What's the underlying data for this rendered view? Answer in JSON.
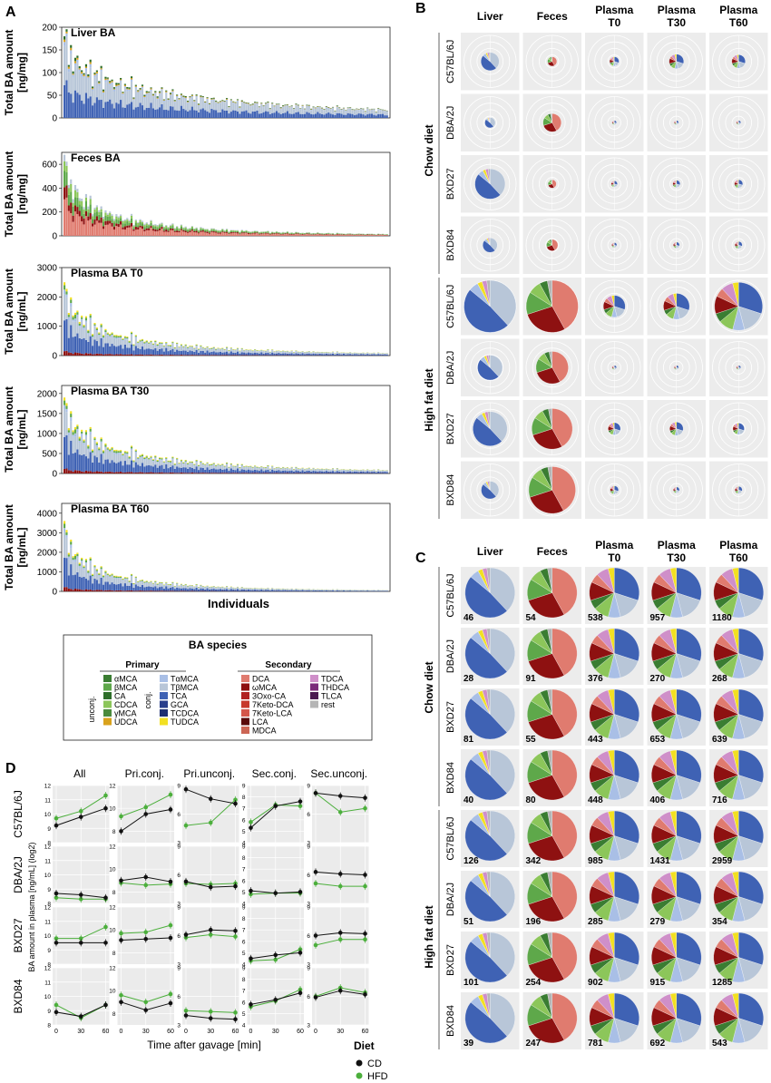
{
  "panel_labels": {
    "a": "A",
    "b": "B",
    "c": "C",
    "d": "D"
  },
  "panel_a": {
    "x_label": "Individuals",
    "chart_data": [
      {
        "type": "bar",
        "title": "Liver BA",
        "ylabel": "Total BA amount [ng/mg]",
        "ylim": [
          0,
          200
        ],
        "yticks": [
          0,
          50,
          100,
          150,
          200
        ],
        "start_value": 180,
        "end_value": 18,
        "n_bars": 150
      },
      {
        "type": "bar",
        "title": "Feces BA",
        "ylabel": "Total BA amount [ng/mg]",
        "ylim": [
          0,
          700
        ],
        "yticks": [
          0,
          200,
          400,
          600
        ],
        "start_value": 680,
        "end_value": 15,
        "n_bars": 150
      },
      {
        "type": "bar",
        "title": "Plasma BA T0",
        "ylabel": "Total BA amount [ng/mL]",
        "ylim": [
          0,
          3000
        ],
        "yticks": [
          0,
          1000,
          2000,
          3000
        ],
        "start_value": 2500,
        "end_value": 80,
        "n_bars": 150
      },
      {
        "type": "bar",
        "title": "Plasma BA T30",
        "ylabel": "Total BA amount [ng/mL]",
        "ylim": [
          0,
          2200
        ],
        "yticks": [
          0,
          500,
          1000,
          1500,
          2000
        ],
        "start_value": 1900,
        "end_value": 80,
        "n_bars": 150
      },
      {
        "type": "bar",
        "title": "Plasma BA T60",
        "ylabel": "Total BA amount [ng/mL]",
        "ylim": [
          0,
          4500
        ],
        "yticks": [
          0,
          1000,
          2000,
          3000,
          4000
        ],
        "start_value": 3600,
        "end_value": 60,
        "n_bars": 150
      }
    ]
  },
  "legend": {
    "title": "BA species",
    "primary": "Primary",
    "secondary": "Secondary",
    "unconj": "unconj.",
    "conj": "conj.",
    "primary_unconj": [
      {
        "name": "αMCA",
        "color": "#3a7d32"
      },
      {
        "name": "βMCA",
        "color": "#5ea84a"
      },
      {
        "name": "CA",
        "color": "#2e6e2a"
      },
      {
        "name": "CDCA",
        "color": "#8cc65a"
      },
      {
        "name": "γMCA",
        "color": "#4a8a3c"
      },
      {
        "name": "UDCA",
        "color": "#d9a21c"
      }
    ],
    "primary_conj": [
      {
        "name": "TαMCA",
        "color": "#a9bfe6"
      },
      {
        "name": "TβMCA",
        "color": "#b8c6d8"
      },
      {
        "name": "TCA",
        "color": "#3f62b4"
      },
      {
        "name": "GCA",
        "color": "#2a3f8c"
      },
      {
        "name": "TCDCA",
        "color": "#1e2f72"
      },
      {
        "name": "TUDCA",
        "color": "#f2e022"
      }
    ],
    "secondary_unconj": [
      {
        "name": "DCA",
        "color": "#e07b6f"
      },
      {
        "name": "ωMCA",
        "color": "#8e1111"
      },
      {
        "name": "3Oxo-CA",
        "color": "#b02020"
      },
      {
        "name": "7Keto-DCA",
        "color": "#c73a2d"
      },
      {
        "name": "7Keto-LCA",
        "color": "#d4564a"
      },
      {
        "name": "LCA",
        "color": "#5a0a0a"
      },
      {
        "name": "MDCA",
        "color": "#cc6655"
      }
    ],
    "secondary_conj": [
      {
        "name": "TDCA",
        "color": "#cf8fc9"
      },
      {
        "name": "THDCA",
        "color": "#7b2a7a"
      },
      {
        "name": "TLCA",
        "color": "#4a1850"
      },
      {
        "name": "rest",
        "color": "#b5b5b5"
      }
    ]
  },
  "panel_b": {
    "columns": [
      "Liver",
      "Feces",
      "Plasma T0",
      "Plasma T30",
      "Plasma T60"
    ],
    "diet_chow": "Chow diet",
    "diet_hfd": "High fat diet",
    "rows": [
      "C57BL/6J",
      "DBA/2J",
      "BXD27",
      "BXD84",
      "C57BL/6J",
      "DBA/2J",
      "BXD27",
      "BXD84"
    ],
    "pie_size": [
      [
        0.35,
        0.18,
        0.18,
        0.28,
        0.26
      ],
      [
        0.2,
        0.35,
        0.08,
        0.06,
        0.08
      ],
      [
        0.58,
        0.16,
        0.12,
        0.14,
        0.16
      ],
      [
        0.28,
        0.22,
        0.1,
        0.12,
        0.14
      ],
      [
        1.0,
        1.0,
        0.42,
        0.5,
        0.92
      ],
      [
        0.48,
        0.62,
        0.06,
        0.05,
        0.08
      ],
      [
        0.66,
        0.78,
        0.24,
        0.26,
        0.22
      ],
      [
        0.34,
        0.9,
        0.16,
        0.12,
        0.14
      ]
    ]
  },
  "panel_c": {
    "columns": [
      "Liver",
      "Feces",
      "Plasma T0",
      "Plasma T30",
      "Plasma T60"
    ],
    "diet_chow": "Chow diet",
    "diet_hfd": "High fat diet",
    "rows": [
      "C57BL/6J",
      "DBA/2J",
      "BXD27",
      "BXD84",
      "C57BL/6J",
      "DBA/2J",
      "BXD27",
      "BXD84"
    ],
    "values": [
      [
        "46",
        "54",
        "538",
        "957",
        "1180"
      ],
      [
        "28",
        "91",
        "376",
        "270",
        "268"
      ],
      [
        "81",
        "55",
        "443",
        "653",
        "639"
      ],
      [
        "40",
        "80",
        "448",
        "406",
        "716"
      ],
      [
        "126",
        "342",
        "985",
        "1431",
        "2959"
      ],
      [
        "51",
        "196",
        "285",
        "279",
        "354"
      ],
      [
        "101",
        "254",
        "902",
        "915",
        "1285"
      ],
      [
        "39",
        "247",
        "781",
        "692",
        "543"
      ]
    ],
    "compositions": {
      "liver": [
        [
          "TβMCA",
          0.38
        ],
        [
          "TCA",
          0.48
        ],
        [
          "TαMCA",
          0.06
        ],
        [
          "TUDCA",
          0.03
        ],
        [
          "TDCA",
          0.03
        ],
        [
          "rest",
          0.02
        ]
      ],
      "feces": [
        [
          "DCA",
          0.42
        ],
        [
          "ωMCA",
          0.28
        ],
        [
          "βMCA",
          0.14
        ],
        [
          "CDCA",
          0.08
        ],
        [
          "αMCA",
          0.05
        ],
        [
          "rest",
          0.03
        ]
      ],
      "plasma": [
        [
          "TCA",
          0.3
        ],
        [
          "TβMCA",
          0.16
        ],
        [
          "TαMCA",
          0.08
        ],
        [
          "CDCA",
          0.1
        ],
        [
          "αMCA",
          0.06
        ],
        [
          "ωMCA",
          0.12
        ],
        [
          "DCA",
          0.06
        ],
        [
          "TDCA",
          0.08
        ],
        [
          "TUDCA",
          0.04
        ]
      ]
    }
  },
  "panel_d": {
    "columns": [
      "All",
      "Pri.conj.",
      "Pri.unconj.",
      "Sec.conj.",
      "Sec.unconj."
    ],
    "rows": [
      "C57BL/6J",
      "DBA/2J",
      "BXD27",
      "BXD84"
    ],
    "ylabel": "BA amount in plasma [ng/mL] (log2)",
    "xlabel": "Time after gavage [min]",
    "xticks": [
      "0",
      "30",
      "60"
    ],
    "legend_title": "Diet",
    "cd_label": "CD",
    "hfd_label": "HFD",
    "cd_color": "#111111",
    "hfd_color": "#4caf3c",
    "chart_data": {
      "type": "line",
      "x": [
        0,
        30,
        60
      ],
      "ranges": [
        [
          8,
          12
        ],
        [
          7,
          12
        ],
        [
          3,
          9
        ],
        [
          4,
          9
        ],
        [
          3,
          9
        ]
      ],
      "tick_labels": [
        [
          "8",
          "9",
          "10",
          "11",
          "12"
        ],
        [
          "8",
          "10",
          "12"
        ],
        [
          "3",
          "6",
          "9"
        ],
        [
          "4",
          "5",
          "6",
          "7",
          "8",
          "9"
        ],
        [
          "3",
          "6",
          "9"
        ]
      ],
      "cd": [
        [
          [
            9.2,
            9.8,
            10.4
          ],
          [
            8.0,
            9.5,
            9.9
          ],
          [
            8.6,
            7.6,
            7.1
          ],
          [
            5.3,
            7.2,
            7.6
          ],
          [
            8.2,
            7.9,
            7.7
          ]
        ],
        [
          [
            8.7,
            8.6,
            8.4
          ],
          [
            9.0,
            9.3,
            8.9
          ],
          [
            5.3,
            4.7,
            4.8
          ],
          [
            5.1,
            4.9,
            5.0
          ],
          [
            6.3,
            6.1,
            6.0
          ]
        ],
        [
          [
            9.5,
            9.5,
            9.5
          ],
          [
            9.1,
            9.2,
            9.3
          ],
          [
            6.1,
            6.6,
            6.5
          ],
          [
            4.5,
            4.8,
            5.0
          ],
          [
            6.0,
            6.3,
            6.2
          ]
        ],
        [
          [
            8.9,
            8.6,
            9.4
          ],
          [
            9.0,
            8.3,
            8.9
          ],
          [
            4.0,
            3.7,
            3.6
          ],
          [
            5.8,
            6.2,
            6.8
          ],
          [
            5.9,
            6.6,
            6.2
          ]
        ]
      ],
      "hfd": [
        [
          [
            9.7,
            10.2,
            11.3
          ],
          [
            9.3,
            10.1,
            11.2
          ],
          [
            4.8,
            5.1,
            7.5
          ],
          [
            5.8,
            7.3,
            7.2
          ],
          [
            8.2,
            6.2,
            6.6
          ]
        ],
        [
          [
            8.4,
            8.3,
            8.3
          ],
          [
            8.8,
            8.6,
            8.7
          ],
          [
            5.1,
            5.0,
            5.1
          ],
          [
            4.8,
            4.9,
            4.9
          ],
          [
            5.1,
            4.8,
            4.8
          ]
        ],
        [
          [
            9.8,
            9.8,
            10.6
          ],
          [
            9.7,
            9.8,
            10.4
          ],
          [
            5.8,
            6.1,
            5.9
          ],
          [
            4.3,
            4.4,
            5.3
          ],
          [
            5.0,
            5.6,
            5.6
          ]
        ],
        [
          [
            9.4,
            8.5,
            9.4
          ],
          [
            9.6,
            9.0,
            9.7
          ],
          [
            4.5,
            4.4,
            4.3
          ],
          [
            5.6,
            6.1,
            7.1
          ],
          [
            6.0,
            6.9,
            6.4
          ]
        ]
      ]
    }
  }
}
